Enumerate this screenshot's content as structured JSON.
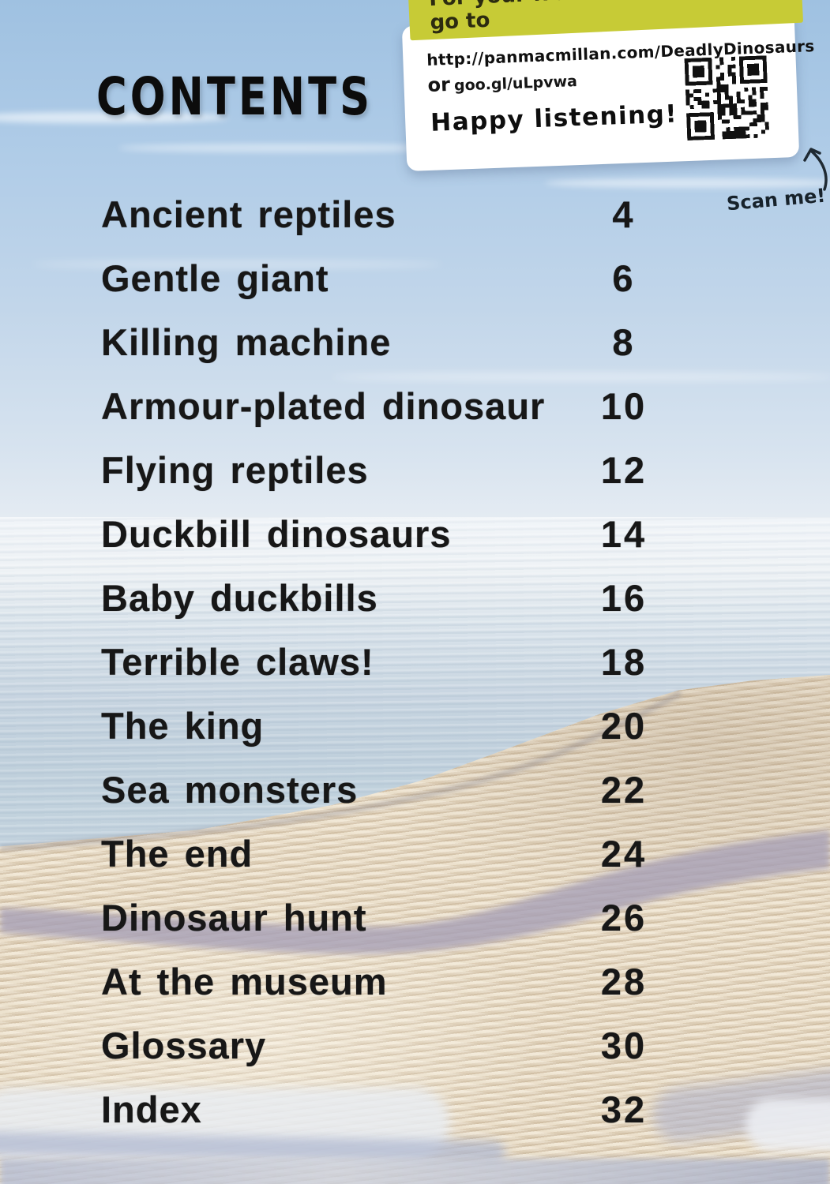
{
  "page": {
    "title": "CONTENTS"
  },
  "audio_card": {
    "banner": "For your free audio download go to",
    "url": "http://panmacmillan.com/DeadlyDinosaurs",
    "or_label": "or",
    "short_url": "goo.gl/uLpvwa",
    "tagline": "Happy listening!",
    "scan_label": "Scan me!"
  },
  "contents": {
    "entries": [
      {
        "title": "Ancient reptiles",
        "page": "4"
      },
      {
        "title": "Gentle giant",
        "page": "6"
      },
      {
        "title": "Killing machine",
        "page": "8"
      },
      {
        "title": "Armour-plated dinosaur",
        "page": "10"
      },
      {
        "title": "Flying reptiles",
        "page": "12"
      },
      {
        "title": "Duckbill dinosaurs",
        "page": "14"
      },
      {
        "title": "Baby duckbills",
        "page": "16"
      },
      {
        "title": "Terrible claws!",
        "page": "18"
      },
      {
        "title": "The king",
        "page": "20"
      },
      {
        "title": "Sea monsters",
        "page": "22"
      },
      {
        "title": "The end",
        "page": "24"
      },
      {
        "title": "Dinosaur hunt",
        "page": "26"
      },
      {
        "title": "At the museum",
        "page": "28"
      },
      {
        "title": "Glossary",
        "page": "30"
      },
      {
        "title": "Index",
        "page": "32"
      }
    ]
  },
  "colors": {
    "sky_top": "#9fc1e1",
    "horizon": "#edf1f4",
    "sea": "#c5d5e0",
    "sand": "#e9dcc6",
    "dune_shadow": "#a7a0b6",
    "banner_bg": "#c7cb36",
    "card_bg": "#ffffff",
    "text": "#171717"
  }
}
